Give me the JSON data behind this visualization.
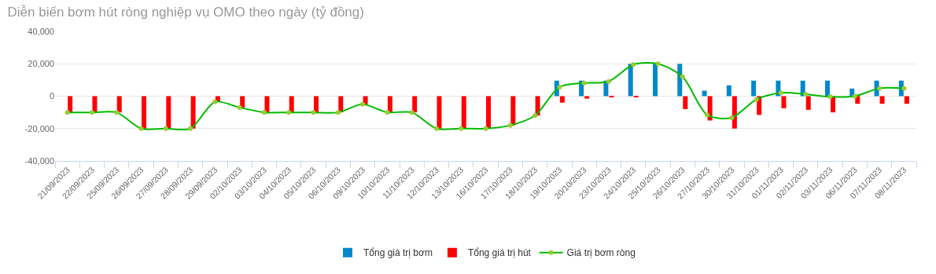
{
  "chart_data": {
    "type": "bar",
    "title": "Diễn biến bơm hút ròng nghiệp vụ OMO theo ngày (tỷ đồng)",
    "categories": [
      "21/09/2023",
      "22/09/2023",
      "25/09/2023",
      "26/09/2023",
      "27/09/2023",
      "28/09/2023",
      "29/09/2023",
      "02/10/2023",
      "03/10/2023",
      "04/10/2023",
      "05/10/2023",
      "06/10/2023",
      "09/10/2023",
      "10/10/2023",
      "11/10/2023",
      "12/10/2023",
      "13/10/2023",
      "16/10/2023",
      "17/10/2023",
      "18/10/2023",
      "19/10/2023",
      "20/10/2023",
      "23/10/2023",
      "24/10/2023",
      "25/10/2023",
      "26/10/2023",
      "27/10/2023",
      "30/10/2023",
      "31/10/2023",
      "01/11/2023",
      "02/11/2023",
      "03/11/2023",
      "06/11/2023",
      "07/11/2023",
      "08/11/2023"
    ],
    "series": [
      {
        "name": "Tổng giá trị bơm",
        "color": "#0088cc",
        "values": [
          null,
          null,
          null,
          null,
          null,
          null,
          null,
          null,
          null,
          null,
          null,
          null,
          null,
          null,
          null,
          null,
          null,
          null,
          null,
          null,
          9600,
          9600,
          9600,
          20000,
          20000,
          20000,
          3400,
          6700,
          9600,
          9600,
          9600,
          9600,
          4700,
          9600,
          9600
        ]
      },
      {
        "name": "Tổng giá trị hút",
        "color": "#ff0000",
        "values": [
          -10000,
          -10000,
          -10000,
          -20000,
          -20000,
          -20000,
          -3500,
          -7000,
          -10000,
          -10000,
          -10000,
          -10000,
          -5000,
          -10000,
          -10000,
          -20000,
          -20000,
          -20000,
          -18000,
          -12000,
          -4000,
          -1500,
          -500,
          -500,
          null,
          -8000,
          -15000,
          -20000,
          -11600,
          -7500,
          -8400,
          -10000,
          -4700,
          -4700,
          -4700
        ]
      },
      {
        "name": "Giá trị bơm ròng",
        "type": "line",
        "color": "#00bb00",
        "values": [
          -10000,
          -10000,
          -10000,
          -20000,
          -20000,
          -20000,
          -3500,
          -7000,
          -10000,
          -10000,
          -10000,
          -10000,
          -5000,
          -10000,
          -10000,
          -20000,
          -20000,
          -20000,
          -18000,
          -12000,
          5600,
          8100,
          9100,
          19500,
          20000,
          12000,
          -11600,
          -13300,
          -2000,
          2100,
          1200,
          -400,
          0,
          4900,
          4900
        ]
      }
    ],
    "ylim": [
      -40000,
      40000
    ],
    "yticks": [
      {
        "value": -40000,
        "label": "-40,000"
      },
      {
        "value": -20000,
        "label": "-20,000"
      },
      0,
      {
        "value": 20000,
        "label": "20,000"
      },
      {
        "value": 40000,
        "label": "40,000"
      }
    ],
    "grid": "y",
    "legend": "bottom",
    "marker": "circle",
    "line_style": "solid"
  }
}
